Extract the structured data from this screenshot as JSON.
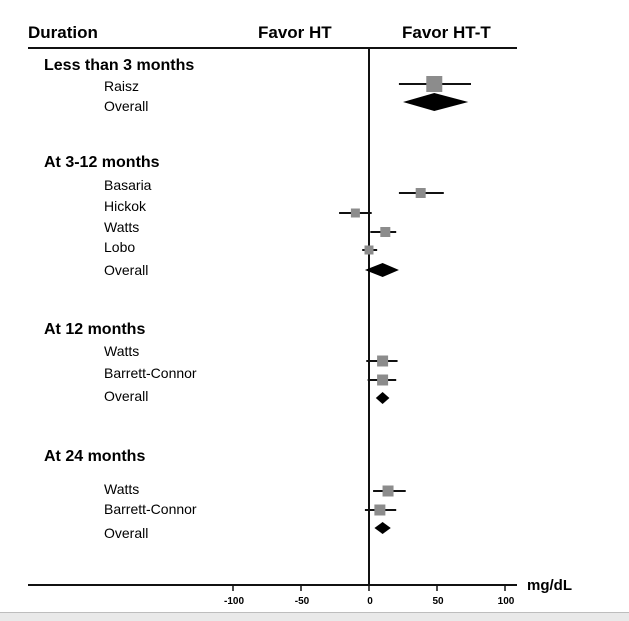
{
  "chart_data": {
    "type": "forest",
    "header": {
      "left_label": "Duration",
      "favor_left": "Favor HT",
      "favor_right": "Favor HT-T"
    },
    "x_unit": "mg/dL",
    "xlim": [
      -100,
      100
    ],
    "x_ticks": [
      "-100",
      "-50",
      "0",
      "50",
      "100"
    ],
    "reference_line": 0,
    "groups": [
      {
        "title": "Less than 3 months",
        "studies": [
          {
            "name": "Raisz",
            "estimate": 48,
            "lower": 22,
            "upper": 75
          }
        ],
        "overall": {
          "name": "Overall",
          "estimate": 48,
          "lower": 25,
          "upper": 73
        }
      },
      {
        "title": "At 3-12 months",
        "studies": [
          {
            "name": "Basaria",
            "estimate": 38,
            "lower": 22,
            "upper": 55
          },
          {
            "name": "Hickok",
            "estimate": -10,
            "lower": -22,
            "upper": 2
          },
          {
            "name": "Watts",
            "estimate": 12,
            "lower": 1,
            "upper": 20
          },
          {
            "name": "Lobo",
            "estimate": 0,
            "lower": -5,
            "upper": 6
          }
        ],
        "overall": {
          "name": "Overall",
          "estimate": 10,
          "lower": -3,
          "upper": 22
        }
      },
      {
        "title": "At 12 months",
        "studies": [
          {
            "name": "Watts",
            "estimate": 10,
            "lower": -2,
            "upper": 21
          },
          {
            "name": "Barrett-Connor",
            "estimate": 10,
            "lower": -1,
            "upper": 20
          }
        ],
        "overall": {
          "name": "Overall",
          "estimate": 10,
          "lower": 5,
          "upper": 15
        }
      },
      {
        "title": "At 24 months",
        "studies": [
          {
            "name": "Watts",
            "estimate": 14,
            "lower": 3,
            "upper": 27
          },
          {
            "name": "Barrett-Connor",
            "estimate": 8,
            "lower": -3,
            "upper": 20
          }
        ],
        "overall": {
          "name": "Overall",
          "estimate": 10,
          "lower": 4,
          "upper": 16
        }
      }
    ]
  }
}
